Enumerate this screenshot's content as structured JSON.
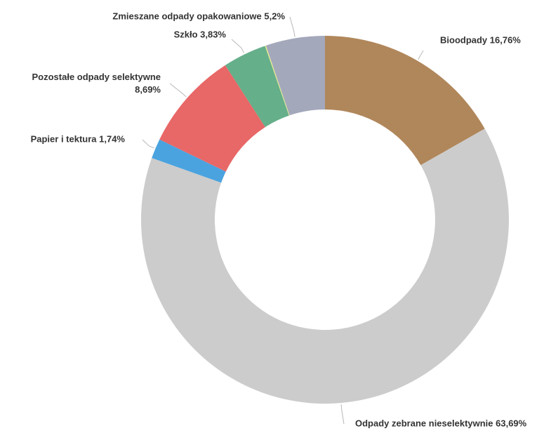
{
  "chart_data": {
    "type": "pie",
    "variant": "donut",
    "slices": [
      {
        "label": "Bioodpady",
        "value": 16.76,
        "value_text": "16,76%",
        "color": "#b0875b"
      },
      {
        "label": "Odpady zebrane nieselektywnie",
        "value": 63.69,
        "value_text": "63,69%",
        "color": "#cccccc"
      },
      {
        "label": "Papier i tektura",
        "value": 1.74,
        "value_text": "1,74%",
        "color": "#4aa3df"
      },
      {
        "label": "Pozostałe odpady selektywne",
        "value": 8.69,
        "value_text": "8,69%",
        "color": "#e86767"
      },
      {
        "label": "Szkło",
        "value": 3.83,
        "value_text": "3,83%",
        "color": "#65af8a"
      },
      {
        "label": "",
        "value": 0.09,
        "value_text": "",
        "color": "#e5e88a"
      },
      {
        "label": "Zmieszane odpady opakowaniowe",
        "value": 5.2,
        "value_text": "5,2%",
        "color": "#a3a8bb"
      }
    ],
    "start_angle_deg": 0,
    "direction": "clockwise",
    "legend": "none",
    "labels": "outside-with-leader-lines"
  }
}
